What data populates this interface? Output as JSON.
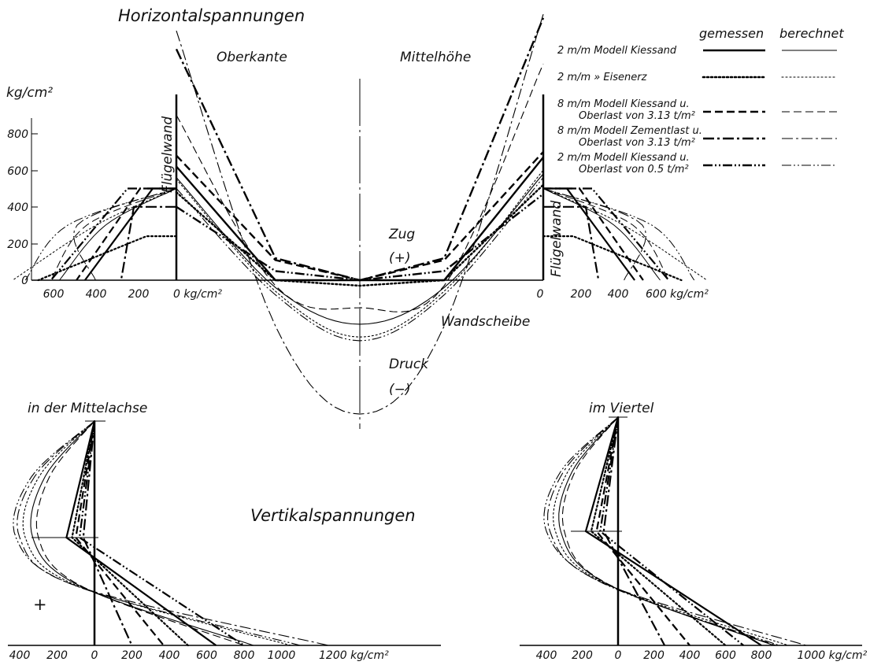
{
  "chart_data": [
    {
      "id": "horizontal",
      "type": "line",
      "title": "Horizontalspannungen",
      "region_labels": {
        "left": "Oberkante",
        "right": "Mittelhöhe",
        "tension": "Zug",
        "tension_sign": "(+)",
        "compression": "Druck",
        "compression_sign": "(−)"
      },
      "annotations": {
        "wall_left": "Flügelwand",
        "wall_right": "Flügelwand",
        "web": "Wandscheibe"
      },
      "y_unit": "kg/cm²",
      "y_ticks": [
        "800",
        "600",
        "400",
        "200",
        "0"
      ],
      "y_range": [
        -750,
        1450
      ],
      "wall_x_ticks_left": [
        "600",
        "400",
        "200",
        "0 kg/cm²"
      ],
      "wall_x_ticks_right": [
        "0",
        "200",
        "400",
        "600 kg/cm²"
      ],
      "legend": {
        "header_measured": "gemessen",
        "header_calculated": "berechnet",
        "entries": [
          {
            "label": "2 m/m Modell Kiessand",
            "style": "solid"
          },
          {
            "label": "2 m/m » Eisenerz",
            "style": "dotted"
          },
          {
            "label": "8 m/m Modell Kiessand u. Oberlast von 3.13 t/m²",
            "style": "dashed"
          },
          {
            "label": "8 m/m Modell Zementlast u. Oberlast von 3.13 t/m²",
            "style": "dashdot"
          },
          {
            "label": "2 m/m Modell Kiessand u. Oberlast von 0.5 t/m²",
            "style": "dashdotdot"
          }
        ]
      },
      "series": [
        {
          "name": "2 m/m Modell Kiessand",
          "x": [
            0,
            0.27,
            0.5,
            0.73,
            1
          ],
          "measured": [
            620,
            0,
            0,
            0,
            670
          ],
          "calculated": [
            560,
            -40,
            -240,
            -40,
            580
          ]
        },
        {
          "name": "2 m/m » Eisenerz",
          "x": [
            0,
            0.27,
            0.5,
            0.73,
            1
          ],
          "measured": [
            480,
            0,
            -30,
            0,
            520
          ],
          "calculated": [
            550,
            -60,
            -310,
            -60,
            600
          ]
        },
        {
          "name": "8 m/m Modell Kiessand u. Oberlast von 3.13 t/m²",
          "x": [
            0,
            0.27,
            0.5,
            0.73,
            1
          ],
          "measured": [
            680,
            110,
            0,
            110,
            700
          ],
          "calculated": [
            900,
            -30,
            -150,
            -30,
            1180
          ]
        },
        {
          "name": "8 m/m Modell Zementlast u. Oberlast von 3.13 t/m²",
          "x": [
            0,
            0.27,
            0.5,
            0.73,
            1
          ],
          "measured": [
            1260,
            120,
            0,
            120,
            1430
          ],
          "calculated": [
            1360,
            -250,
            -730,
            -250,
            1450
          ]
        },
        {
          "name": "2 m/m Modell Kiessand u. Oberlast von 0.5 t/m²",
          "x": [
            0,
            0.27,
            0.5,
            0.73,
            1
          ],
          "measured": [
            400,
            50,
            0,
            50,
            470
          ],
          "calculated": [
            500,
            -80,
            -330,
            -80,
            560
          ]
        }
      ]
    },
    {
      "id": "vertical-center",
      "type": "line",
      "title": "Vertikalspannungen",
      "subtitle": "in der Mittelachse",
      "sign_label": "+",
      "x_unit": "kg/cm²",
      "x_ticks": [
        "400",
        "200",
        "0",
        "200",
        "400",
        "600",
        "800",
        "1000",
        "1200 kg/cm²"
      ],
      "x_range": [
        -400,
        1300
      ],
      "y_range": [
        0,
        1
      ],
      "series": [
        {
          "name": "2 m/m Modell Kiessand",
          "points_measured": [
            [
              0,
              0
            ],
            [
              -150,
              0.63
            ],
            [
              650,
              1
            ]
          ],
          "points_calculated": [
            [
              0,
              0
            ],
            [
              -330,
              0.63
            ],
            [
              850,
              1
            ]
          ]
        },
        {
          "name": "2 m/m » Eisenerz",
          "points_measured": [
            [
              0,
              0
            ],
            [
              -120,
              0.63
            ],
            [
              500,
              1
            ]
          ],
          "points_calculated": [
            [
              0,
              0
            ],
            [
              -370,
              0.63
            ],
            [
              1050,
              1
            ]
          ]
        },
        {
          "name": "8 m/m Modell Kiessand u. Oberlast von 3.13 t/m²",
          "points_measured": [
            [
              0,
              0
            ],
            [
              -100,
              0.63
            ],
            [
              370,
              1
            ]
          ],
          "points_calculated": [
            [
              0,
              0
            ],
            [
              -300,
              0.63
            ],
            [
              800,
              1
            ]
          ]
        },
        {
          "name": "8 m/m Modell Zementlast u. Oberlast von 3.13 t/m²",
          "points_measured": [
            [
              0,
              0
            ],
            [
              -60,
              0.63
            ],
            [
              200,
              1
            ]
          ],
          "points_calculated": [
            [
              0,
              0
            ],
            [
              -400,
              0.63
            ],
            [
              1250,
              1
            ]
          ]
        },
        {
          "name": "2 m/m Modell Kiessand u. Oberlast von 0.5 t/m²",
          "points_measured": [
            [
              0,
              0
            ],
            [
              -80,
              0.63
            ],
            [
              800,
              1
            ]
          ],
          "points_calculated": [
            [
              0,
              0
            ],
            [
              -420,
              0.63
            ],
            [
              1100,
              1
            ]
          ]
        }
      ]
    },
    {
      "id": "vertical-quarter",
      "type": "line",
      "subtitle": "im Viertel",
      "x_unit": "kg/cm²",
      "x_ticks": [
        "400",
        "200",
        "0",
        "200",
        "400",
        "600",
        "800",
        "1000 kg/cm²"
      ],
      "x_range": [
        -400,
        1100
      ],
      "y_range": [
        0,
        1
      ],
      "series": [
        {
          "name": "2 m/m Modell Kiessand",
          "points_measured": [
            [
              0,
              0
            ],
            [
              -180,
              0.63
            ],
            [
              800,
              1
            ]
          ],
          "points_calculated": [
            [
              0,
              0
            ],
            [
              -320,
              0.63
            ],
            [
              870,
              1
            ]
          ]
        },
        {
          "name": "2 m/m » Eisenerz",
          "points_measured": [
            [
              0,
              0
            ],
            [
              -150,
              0.63
            ],
            [
              600,
              1
            ]
          ],
          "points_calculated": [
            [
              0,
              0
            ],
            [
              -350,
              0.63
            ],
            [
              950,
              1
            ]
          ]
        },
        {
          "name": "8 m/m Modell Kiessand u. Oberlast von 3.13 t/m²",
          "points_measured": [
            [
              0,
              0
            ],
            [
              -120,
              0.63
            ],
            [
              400,
              1
            ]
          ],
          "points_calculated": [
            [
              0,
              0
            ],
            [
              -300,
              0.63
            ],
            [
              880,
              1
            ]
          ]
        },
        {
          "name": "8 m/m Modell Zementlast u. Oberlast von 3.13 t/m²",
          "points_measured": [
            [
              0,
              0
            ],
            [
              -80,
              0.63
            ],
            [
              260,
              1
            ]
          ],
          "points_calculated": [
            [
              0,
              0
            ],
            [
              -380,
              0.63
            ],
            [
              1050,
              1
            ]
          ]
        },
        {
          "name": "2 m/m Modell Kiessand u. Oberlast von 0.5 t/m²",
          "points_measured": [
            [
              0,
              0
            ],
            [
              -100,
              0.63
            ],
            [
              700,
              1
            ]
          ],
          "points_calculated": [
            [
              0,
              0
            ],
            [
              -400,
              0.63
            ],
            [
              900,
              1
            ]
          ]
        }
      ]
    }
  ]
}
